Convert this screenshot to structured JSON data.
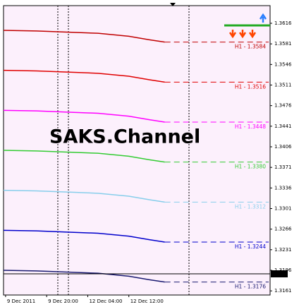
{
  "chart_data": {
    "type": "line",
    "title": "SAKS.Channel",
    "x": [
      -0.4,
      6,
      12,
      18,
      24,
      28,
      31
    ],
    "xlim": [
      -0.4,
      51.5
    ],
    "xticks": [
      {
        "value": 0,
        "label": "9 Dec 2011"
      },
      {
        "value": 8,
        "label": "9 Dec 20:00"
      },
      {
        "value": 16,
        "label": "12 Dec 04:00"
      },
      {
        "value": 24,
        "label": "12 Dec 12:00"
      }
    ],
    "ylim": [
      1.3154,
      1.3646
    ],
    "yticks": [
      1.3616,
      1.3581,
      1.3546,
      1.3511,
      1.3476,
      1.3441,
      1.3406,
      1.3371,
      1.3336,
      1.3301,
      1.3266,
      1.3231,
      1.3196,
      1.3161
    ],
    "current_price": 1.319,
    "series": [
      {
        "name": "H1 - 1.3584",
        "level": 1.3584,
        "color": "#c00000",
        "values": [
          1.3604,
          1.3603,
          1.3601,
          1.3599,
          1.3594,
          1.3588,
          1.3584
        ]
      },
      {
        "name": "H1 - 1.3516",
        "level": 1.3516,
        "color": "#e00000",
        "values": [
          1.3536,
          1.3535,
          1.3533,
          1.3531,
          1.3526,
          1.352,
          1.3516
        ]
      },
      {
        "name": "H1 - 1.3448",
        "level": 1.3448,
        "color": "#ff00ff",
        "values": [
          1.3468,
          1.3467,
          1.3465,
          1.3463,
          1.3458,
          1.3452,
          1.3448
        ]
      },
      {
        "name": "H1 - 1.3380",
        "level": 1.338,
        "color": "#33cc33",
        "values": [
          1.34,
          1.3399,
          1.3397,
          1.3395,
          1.339,
          1.3384,
          1.338
        ]
      },
      {
        "name": "H1 - 1.3312",
        "level": 1.3312,
        "color": "#87ceeb",
        "values": [
          1.3332,
          1.3331,
          1.3329,
          1.3327,
          1.3322,
          1.3316,
          1.3312
        ]
      },
      {
        "name": "H1 - 1.3244",
        "level": 1.3244,
        "color": "#0000cc",
        "values": [
          1.3264,
          1.3263,
          1.3261,
          1.3259,
          1.3254,
          1.3248,
          1.3244
        ]
      },
      {
        "name": "H1 - 1.3176",
        "level": 1.3176,
        "color": "#191970",
        "values": [
          1.3196,
          1.3195,
          1.3193,
          1.3191,
          1.3186,
          1.318,
          1.3176
        ]
      }
    ]
  }
}
